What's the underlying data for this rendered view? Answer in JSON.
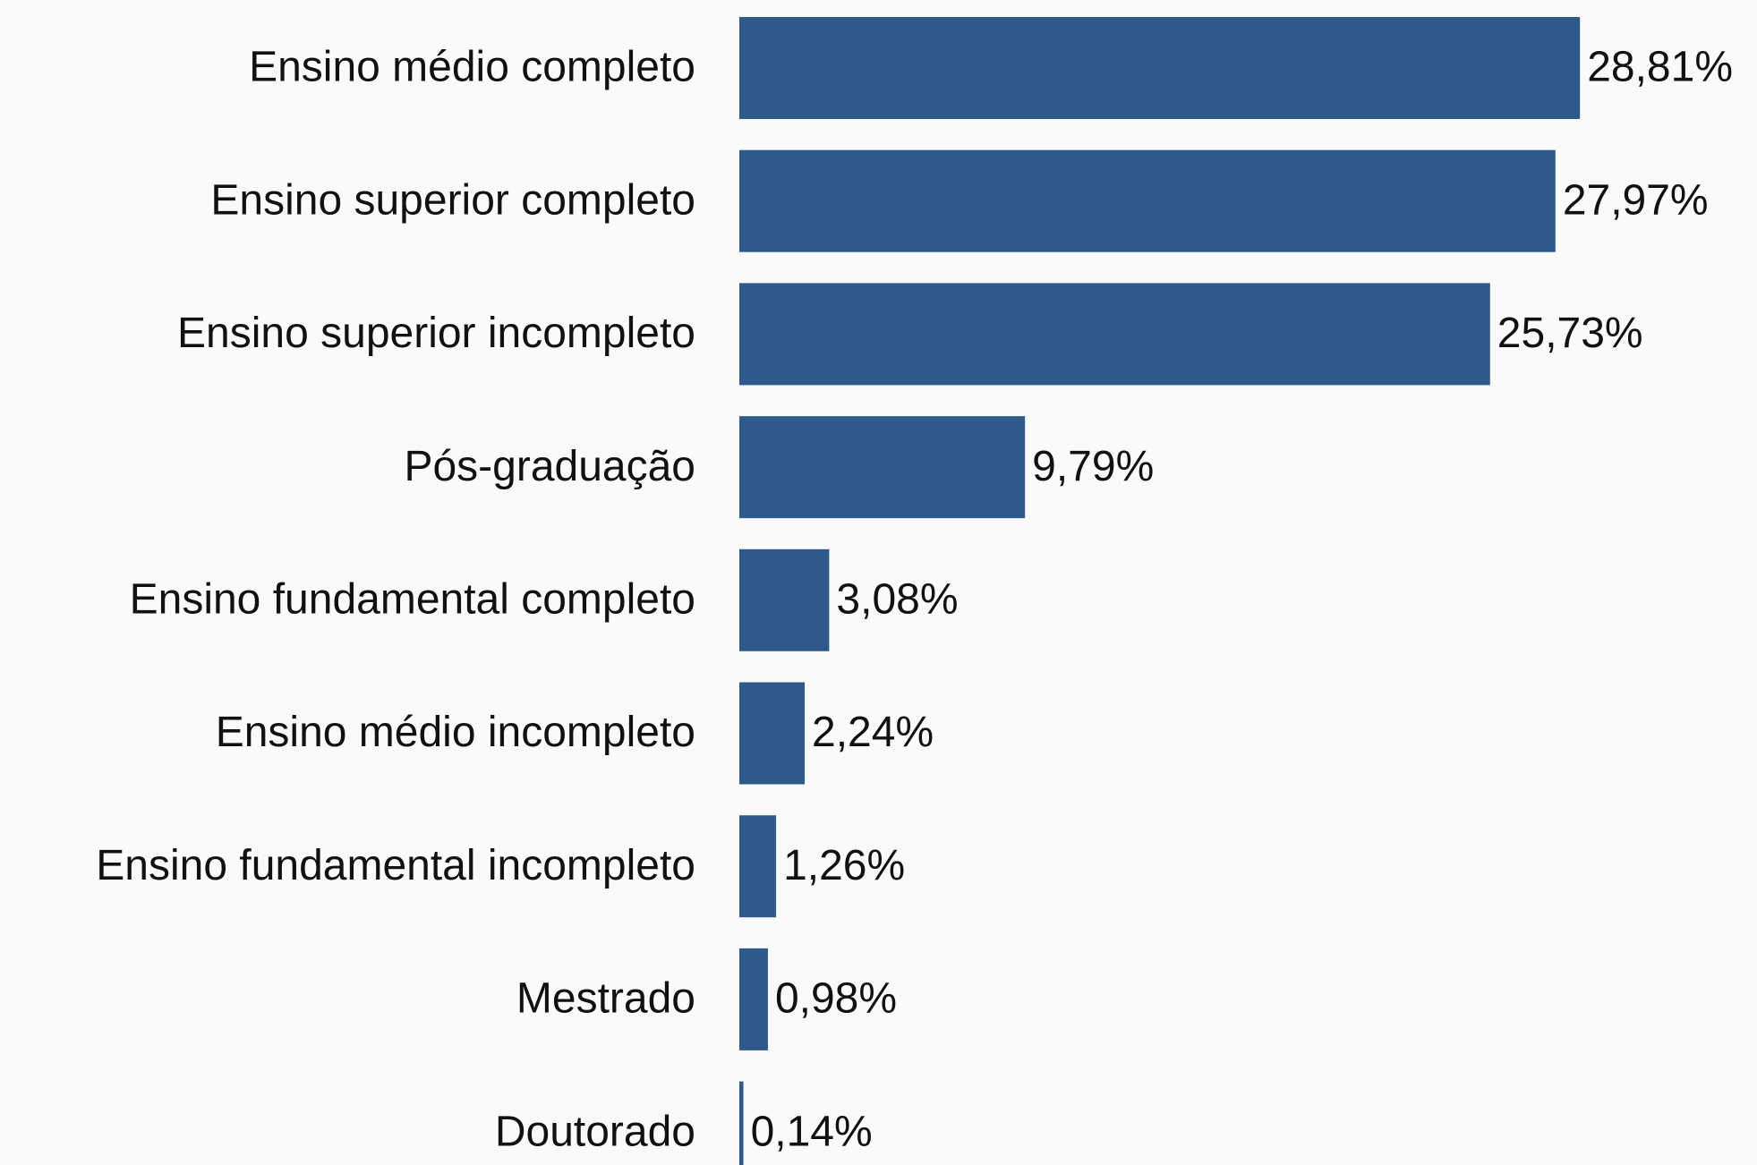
{
  "chart_data": {
    "type": "bar",
    "orientation": "horizontal",
    "color": "#2e5a8b",
    "categories": [
      "Ensino médio completo",
      "Ensino superior completo",
      "Ensino superior incompleto",
      "Pós-graduação",
      "Ensino fundamental completo",
      "Ensino médio incompleto",
      "Ensino fundamental incompleto",
      "Mestrado",
      "Doutorado"
    ],
    "values": [
      28.81,
      27.97,
      25.73,
      9.79,
      3.08,
      2.24,
      1.26,
      0.98,
      0.14
    ],
    "value_labels": [
      "28,81%",
      "27,97%",
      "25,73%",
      "9,79%",
      "3,08%",
      "2,24%",
      "1,26%",
      "0,98%",
      "0,14%"
    ]
  }
}
